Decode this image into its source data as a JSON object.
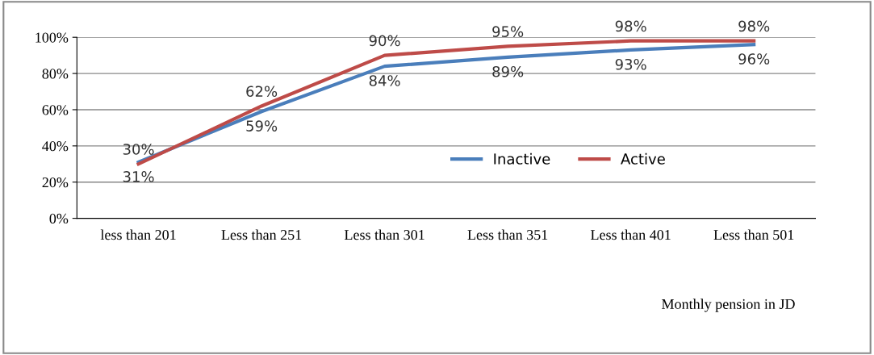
{
  "chart_data": {
    "type": "line",
    "xlabel": "Monthly pension in JD",
    "categories": [
      "less than 201",
      "Less than 251",
      "Less than 301",
      "Less than 351",
      "Less than 401",
      "Less than 501"
    ],
    "series": [
      {
        "name": "Inactive",
        "color": "#4a7ebb",
        "values": [
          31,
          59,
          84,
          89,
          93,
          96
        ],
        "value_labels": [
          "31%",
          "59%",
          "84%",
          "89%",
          "93%",
          "96%"
        ]
      },
      {
        "name": "Active",
        "color": "#be4b48",
        "values": [
          30,
          62,
          90,
          95,
          98,
          98
        ],
        "value_labels": [
          "30%",
          "62%",
          "90%",
          "95%",
          "98%",
          "98%"
        ]
      }
    ],
    "ylim": [
      0,
      100
    ],
    "yticks": [
      {
        "value": 0,
        "label": "0%"
      },
      {
        "value": 20,
        "label": "20%"
      },
      {
        "value": 40,
        "label": "40%"
      },
      {
        "value": 60,
        "label": "60%"
      },
      {
        "value": 80,
        "label": "80%"
      },
      {
        "value": 100,
        "label": "100%"
      }
    ],
    "grid": "y",
    "legend": "right",
    "marker": "none",
    "line_style": "solid"
  }
}
